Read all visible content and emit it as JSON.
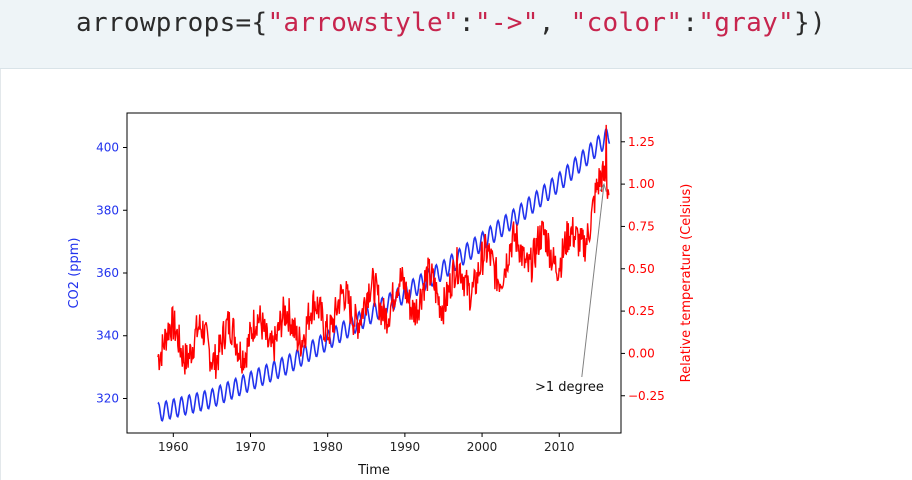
{
  "code": {
    "tokens": [
      {
        "text": "arrowprops={",
        "kind": "plain"
      },
      {
        "text": "\"arrowstyle\"",
        "kind": "str"
      },
      {
        "text": ":",
        "kind": "plain"
      },
      {
        "text": "\"->\"",
        "kind": "str"
      },
      {
        "text": ", ",
        "kind": "plain"
      },
      {
        "text": "\"color\"",
        "kind": "str"
      },
      {
        "text": ":",
        "kind": "plain"
      },
      {
        "text": "\"gray\"",
        "kind": "str"
      },
      {
        "text": "})",
        "kind": "plain"
      }
    ]
  },
  "chart_data": {
    "type": "line",
    "xlabel": "Time",
    "ylabel_left": "CO2 (ppm)",
    "ylabel_right": "Relative temperature (Celsius)",
    "xlim": [
      1954,
      2018
    ],
    "ylim_left": [
      309,
      411
    ],
    "ylim_right": [
      -0.47,
      1.42
    ],
    "x_ticks": [
      1960,
      1970,
      1980,
      1990,
      2000,
      2010
    ],
    "y_ticks_left": [
      320,
      340,
      360,
      380,
      400
    ],
    "y_ticks_right": [
      -0.25,
      0.0,
      0.25,
      0.5,
      0.75,
      1.0,
      1.25
    ],
    "y_tick_labels_right": [
      "−0.25",
      "0.00",
      "0.25",
      "0.50",
      "0.75",
      "1.00",
      "1.25"
    ],
    "colors": {
      "co2": "#2233ee",
      "temperature": "#ff0000",
      "annotation": "#808080"
    },
    "series": [
      {
        "axis": "left",
        "color": "#2233ee",
        "x_start": 1958,
        "x_end": 2016.5,
        "trend_points": [
          [
            1958,
            315.5
          ],
          [
            1965,
            320
          ],
          [
            1975,
            331
          ],
          [
            1985,
            346
          ],
          [
            1995,
            361
          ],
          [
            2005,
            379
          ],
          [
            2010,
            389
          ],
          [
            2016.5,
            404
          ]
        ],
        "seasonal_amplitude_ppm": 3
      },
      {
        "axis": "right",
        "color": "#ff0000",
        "x_start": 1958,
        "x_end": 2016.5,
        "trend_points": [
          [
            1958,
            0.08
          ],
          [
            1965,
            0.05
          ],
          [
            1975,
            0.15
          ],
          [
            1985,
            0.3
          ],
          [
            1995,
            0.38
          ],
          [
            2005,
            0.6
          ],
          [
            2012,
            0.62
          ],
          [
            2016,
            1.0
          ]
        ],
        "noise_amplitude": 0.11,
        "peak": {
          "x": 2016.1,
          "y": 1.35
        }
      }
    ],
    "annotation": {
      "text": ">1 degree",
      "xy": [
        2015.8,
        1.0
      ],
      "xytext": [
        2008,
        -0.2
      ],
      "arrowstyle": "->"
    }
  }
}
